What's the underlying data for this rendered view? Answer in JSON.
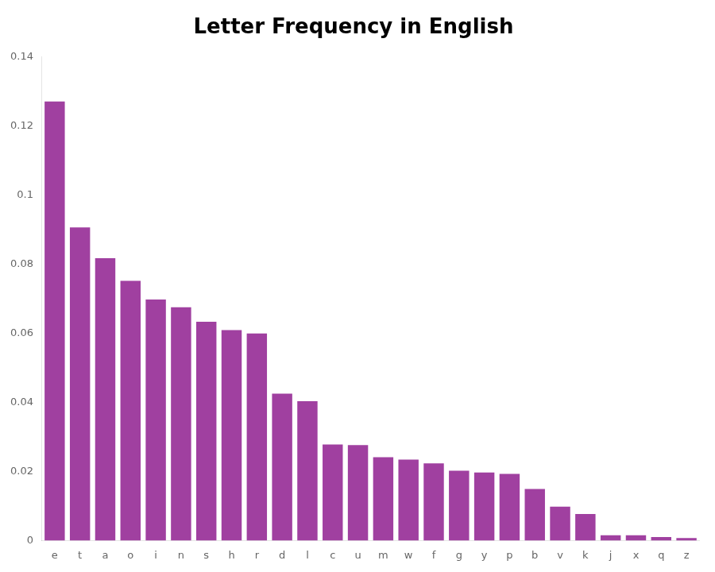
{
  "chart_data": {
    "type": "bar",
    "title": "Letter Frequency in English",
    "categories": [
      "e",
      "t",
      "a",
      "o",
      "i",
      "n",
      "s",
      "h",
      "r",
      "d",
      "l",
      "c",
      "u",
      "m",
      "w",
      "f",
      "g",
      "y",
      "p",
      "b",
      "v",
      "k",
      "j",
      "x",
      "q",
      "z"
    ],
    "values": [
      0.127,
      0.0906,
      0.0817,
      0.0751,
      0.0697,
      0.0675,
      0.0633,
      0.0609,
      0.0599,
      0.0425,
      0.0403,
      0.0278,
      0.0276,
      0.0241,
      0.0234,
      0.0223,
      0.0202,
      0.0197,
      0.0193,
      0.0149,
      0.0098,
      0.0077,
      0.0015,
      0.0015,
      0.001,
      0.0007
    ],
    "color": "#A040A0",
    "ylim": [
      0,
      0.14
    ],
    "yticks": [
      0,
      0.02,
      0.04,
      0.06,
      0.08,
      0.1,
      0.12,
      0.14
    ],
    "grid": false
  }
}
